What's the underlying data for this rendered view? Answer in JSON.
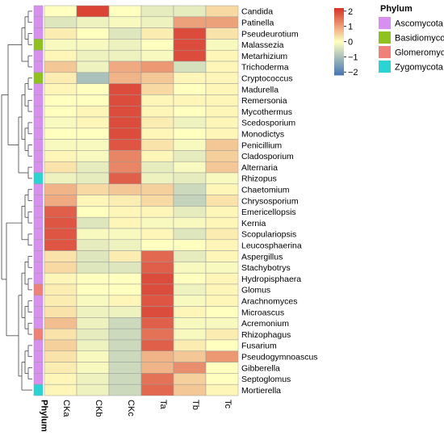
{
  "chart_data": {
    "type": "heatmap",
    "title": "",
    "columns": [
      "CKa",
      "CKb",
      "CKc",
      "Ta",
      "Tb",
      "Tc"
    ],
    "rows": [
      "Candida",
      "Patinella",
      "Pseudeurotium",
      "Malassezia",
      "Metarhizium",
      "Trichoderma",
      "Cryptococcus",
      "Madurella",
      "Remersonia",
      "Mycothermus",
      "Scedosporium",
      "Monodictys",
      "Penicillium",
      "Cladosporium",
      "Alternaria",
      "Rhizopus",
      "Chaetomium",
      "Chrysosporium",
      "Emericellopsis",
      "Kernia",
      "Scopulariopsis",
      "Leucosphaerina",
      "Aspergillus",
      "Stachybotrys",
      "Hydropisphaera",
      "Glomus",
      "Arachnomyces",
      "Microascus",
      "Acremonium",
      "Rhizophagus",
      "Fusarium",
      "Pseudogymnoascus",
      "Gibberella",
      "Septoglomus",
      "Mortierella"
    ],
    "row_phylum": [
      "Ascomycota",
      "Ascomycota",
      "Ascomycota",
      "Basidiomycota",
      "Ascomycota",
      "Ascomycota",
      "Basidiomycota",
      "Ascomycota",
      "Ascomycota",
      "Ascomycota",
      "Ascomycota",
      "Ascomycota",
      "Ascomycota",
      "Ascomycota",
      "Ascomycota",
      "Zygomycota",
      "Ascomycota",
      "Ascomycota",
      "Ascomycota",
      "Ascomycota",
      "Ascomycota",
      "Ascomycota",
      "Ascomycota",
      "Ascomycota",
      "Ascomycota",
      "Glomeromycota",
      "Ascomycota",
      "Ascomycota",
      "Ascomycota",
      "Glomeromycota",
      "Ascomycota",
      "Ascomycota",
      "Ascomycota",
      "Ascomycota",
      "Zygomycota"
    ],
    "values": [
      [
        0.0,
        2.0,
        0.0,
        -0.3,
        -0.3,
        0.4
      ],
      [
        -0.4,
        -0.2,
        -0.1,
        -0.2,
        1.0,
        1.0
      ],
      [
        0.2,
        0.0,
        -0.4,
        0.2,
        1.9,
        0.3
      ],
      [
        -0.1,
        -0.1,
        -0.2,
        0.0,
        1.9,
        -0.1
      ],
      [
        0.1,
        -0.2,
        -0.2,
        -0.1,
        1.9,
        0.1
      ],
      [
        0.6,
        -0.2,
        0.9,
        1.1,
        -0.5,
        0.1
      ],
      [
        0.2,
        -1.0,
        0.8,
        0.6,
        0.1,
        0.1
      ],
      [
        0.1,
        0.0,
        1.9,
        0.4,
        0.0,
        0.1
      ],
      [
        0.0,
        0.0,
        1.9,
        0.1,
        0.1,
        0.1
      ],
      [
        0.0,
        0.1,
        1.9,
        0.1,
        0.0,
        0.1
      ],
      [
        -0.1,
        0.1,
        1.9,
        0.2,
        -0.2,
        0.1
      ],
      [
        0.0,
        0.0,
        1.9,
        0.1,
        0.0,
        0.1
      ],
      [
        -0.1,
        -0.1,
        1.8,
        0.3,
        -0.1,
        0.6
      ],
      [
        0.1,
        -0.1,
        1.3,
        0.1,
        -0.3,
        0.5
      ],
      [
        0.3,
        -0.3,
        1.3,
        -0.3,
        -0.1,
        0.6
      ],
      [
        -0.2,
        -0.3,
        1.7,
        -0.2,
        -0.3,
        -0.1
      ],
      [
        0.8,
        0.4,
        0.6,
        0.5,
        -0.6,
        0.1
      ],
      [
        0.9,
        0.1,
        0.2,
        0.4,
        -0.7,
        0.3
      ],
      [
        1.7,
        0.0,
        0.1,
        0.1,
        -0.3,
        0.1
      ],
      [
        1.8,
        -0.4,
        0.1,
        -0.1,
        -0.1,
        0.1
      ],
      [
        1.8,
        -0.1,
        -0.1,
        0.1,
        -0.4,
        0.2
      ],
      [
        1.8,
        -0.3,
        -0.2,
        0.0,
        0.0,
        0.1
      ],
      [
        0.3,
        -0.4,
        0.2,
        1.6,
        -0.3,
        0.1
      ],
      [
        0.4,
        -0.4,
        -0.4,
        1.7,
        -0.1,
        -0.1
      ],
      [
        0.1,
        0.0,
        0.0,
        1.9,
        0.0,
        0.1
      ],
      [
        0.2,
        0.0,
        0.0,
        1.9,
        -0.2,
        0.1
      ],
      [
        0.2,
        -0.1,
        0.1,
        1.8,
        -0.1,
        0.1
      ],
      [
        0.3,
        -0.2,
        -0.2,
        1.9,
        0.1,
        0.0
      ],
      [
        0.7,
        -0.2,
        -0.6,
        1.7,
        -0.1,
        -0.1
      ],
      [
        0.3,
        -0.3,
        -0.6,
        1.5,
        -0.1,
        0.2
      ],
      [
        0.5,
        -0.2,
        -0.6,
        1.7,
        0.2,
        0.0
      ],
      [
        0.3,
        -0.1,
        -0.6,
        0.8,
        0.6,
        1.1
      ],
      [
        0.2,
        -0.1,
        -0.6,
        0.8,
        1.2,
        0.0
      ],
      [
        0.1,
        -0.2,
        -0.6,
        1.5,
        0.5,
        0.0
      ],
      [
        0.1,
        -0.2,
        -0.6,
        1.6,
        0.6,
        0.1
      ]
    ],
    "color_range": [
      -2.2,
      2.2
    ],
    "colorbar_ticks": [
      2,
      1,
      0,
      -1,
      -2
    ],
    "colorbar_tick_labels": [
      "2",
      "1",
      "0",
      "−1",
      "−2"
    ],
    "colors": {
      "low": "#4575b4",
      "mid": "#ffffbf",
      "high": "#d73027"
    },
    "annotation_label": "Phylum",
    "legend": {
      "title": "Phylum",
      "placement": "right",
      "items": [
        {
          "name": "Ascomycota",
          "color": "#d890f0"
        },
        {
          "name": "Basidiomycota",
          "color": "#8fc21f"
        },
        {
          "name": "Glomeromycota",
          "color": "#f0807a"
        },
        {
          "name": "Zygomycota",
          "color": "#2ad4d4"
        }
      ]
    },
    "row_dendrogram": true
  }
}
